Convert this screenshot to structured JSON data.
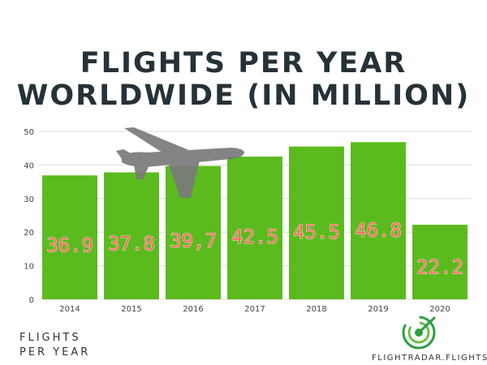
{
  "title_line1": "FLIGHTS PER YEAR",
  "title_line2": "WORLDWIDE (IN MILLION)",
  "footer": {
    "left_line1": "FLIGHTS",
    "left_line2": "PER YEAR",
    "brand": "FLIGHTRADAR.FLIGHTS"
  },
  "colors": {
    "bar": "#5bbb1e",
    "label": "#ff6b5e",
    "title": "#253238",
    "plane": "#7a7a7a",
    "logo_green": "#2f9e44"
  },
  "icons": {
    "plane": "airplane-icon",
    "logo": "radar-logo-icon"
  },
  "chart_data": {
    "type": "bar",
    "categories": [
      "2014",
      "2015",
      "2016",
      "2017",
      "2018",
      "2019",
      "2020"
    ],
    "values": [
      36.9,
      37.8,
      39.7,
      42.5,
      45.5,
      46.8,
      22.2
    ],
    "value_labels": [
      "36.9",
      "37.8",
      "39,7",
      "42.5",
      "45.5",
      "46.8",
      "22.2"
    ],
    "yticks": [
      "0",
      "10",
      "20",
      "30",
      "40",
      "50"
    ],
    "ylim": [
      0,
      50
    ],
    "grid": true,
    "legend": "none",
    "xlabel": "",
    "ylabel": ""
  }
}
